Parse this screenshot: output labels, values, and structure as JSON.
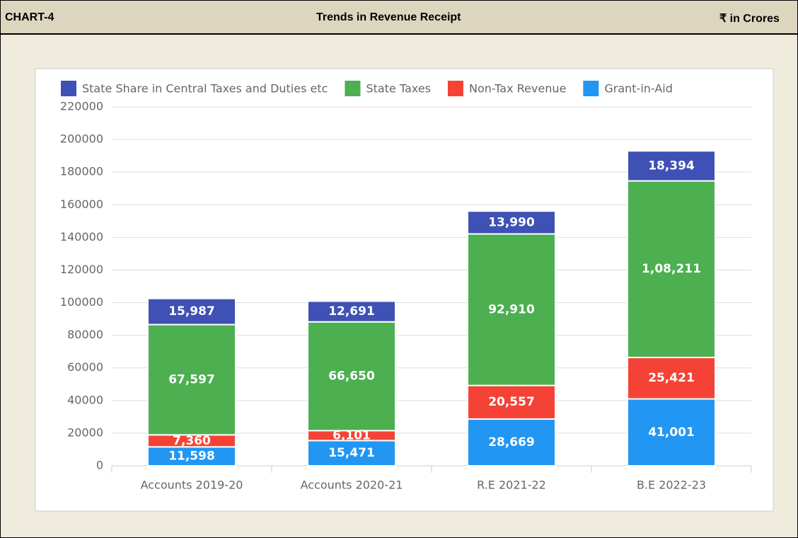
{
  "header": {
    "label": "CHART-4",
    "title": "Trends in Revenue Receipt",
    "unit": "₹ in Crores"
  },
  "chart_data": {
    "type": "stacked_bar",
    "categories": [
      "Accounts 2019-20",
      "Accounts 2020-21",
      "R.E 2021-22",
      "B.E 2022-23"
    ],
    "series": [
      {
        "name": "State Share in Central Taxes and Duties etc",
        "color": "#3f51b5",
        "values": [
          15987,
          12691,
          13990,
          18394
        ],
        "value_labels": [
          "15,987",
          "12,691",
          "13,990",
          "18,394"
        ]
      },
      {
        "name": "State Taxes",
        "color": "#4caf50",
        "values": [
          67597,
          66650,
          92910,
          108211
        ],
        "value_labels": [
          "67,597",
          "66,650",
          "92,910",
          "1,08,211"
        ]
      },
      {
        "name": "Non-Tax Revenue",
        "color": "#f44336",
        "values": [
          7360,
          6101,
          20557,
          25421
        ],
        "value_labels": [
          "7,360",
          "6,101",
          "20,557",
          "25,421"
        ]
      },
      {
        "name": "Grant-in-Aid",
        "color": "#2196f3",
        "values": [
          11598,
          15471,
          28669,
          41001
        ],
        "value_labels": [
          "11,598",
          "15,471",
          "28,669",
          "41,001"
        ]
      }
    ],
    "stack_order": "bottom-up-reverse",
    "ylim": [
      0,
      220000
    ],
    "yticks": [
      0,
      20000,
      40000,
      60000,
      80000,
      100000,
      120000,
      140000,
      160000,
      180000,
      200000,
      220000
    ],
    "grid": true,
    "legend": "top"
  }
}
